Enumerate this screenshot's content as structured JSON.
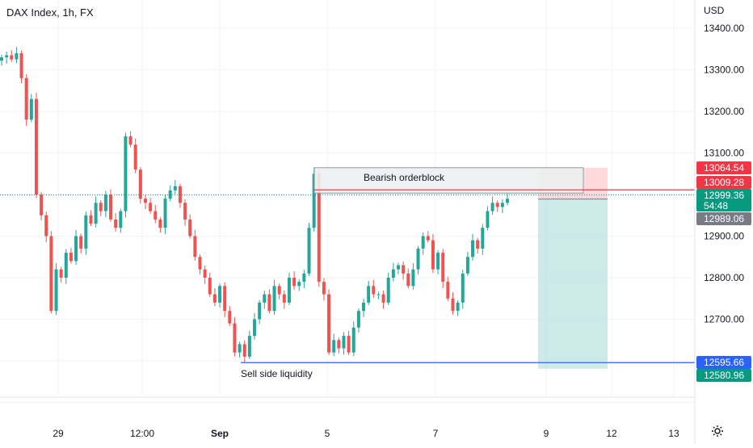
{
  "header": {
    "title": "DAX Index, 1h, FX"
  },
  "price_axis": {
    "currency": "USD",
    "ticks": [
      "13400.00",
      "13300.00",
      "13200.00",
      "13100.00",
      "12900.00",
      "12800.00",
      "12700.00"
    ]
  },
  "time_axis": {
    "ticks": [
      "29",
      "12:00",
      "Sep",
      "5",
      "7",
      "9",
      "12",
      "13"
    ]
  },
  "badges": {
    "rr_top": "13064.54",
    "block_line": "13009.28",
    "current_price": "12999.36",
    "countdown": "54:48",
    "entry": "12989.06",
    "liquidity": "12595.66",
    "rr_bottom": "12580.96"
  },
  "annotations": {
    "orderblock_label": "Bearish orderblock",
    "liquidity_label": "Sell side liquidity"
  },
  "colors": {
    "up": "#26a69a",
    "down": "#ef5350",
    "liquidity_line": "#2962ff",
    "block_line": "#f23645",
    "profit_zone": "#b2dfdb",
    "loss_zone": "#ffcdd2",
    "orderblock_fill": "#eceff1",
    "grid": "#f0f3fa",
    "current_price_line": "#089981"
  },
  "icons": {
    "settings": "gear-icon"
  },
  "chart_data": {
    "type": "candlestick",
    "title": "DAX Index, 1h, FX",
    "currency": "USD",
    "ylim": [
      12490,
      13430
    ],
    "x_tick_labels": [
      "29",
      "12:00",
      "Sep",
      "5",
      "7",
      "9",
      "12",
      "13"
    ],
    "y_tick_labels": [
      "13400.00",
      "13300.00",
      "13200.00",
      "13100.00",
      "12900.00",
      "12800.00",
      "12700.00"
    ],
    "grid": true,
    "close_path": [
      13330,
      13335,
      13325,
      13340,
      13280,
      13180,
      13230,
      13000,
      12950,
      12900,
      12720,
      12820,
      12800,
      12860,
      12840,
      12900,
      12870,
      12950,
      12930,
      12980,
      12960,
      13000,
      12940,
      12920,
      12960,
      13140,
      13120,
      13060,
      12990,
      12980,
      12960,
      12940,
      12920,
      12990,
      13010,
      13020,
      12980,
      12940,
      12900,
      12850,
      12820,
      12800,
      12760,
      12740,
      12780,
      12720,
      12690,
      12620,
      12640,
      12610,
      12660,
      12700,
      12740,
      12760,
      12720,
      12780,
      12760,
      12740,
      12800,
      12780,
      12790,
      12810,
      12920,
      13050,
      12790,
      12760,
      12620,
      12650,
      12630,
      12660,
      12620,
      12680,
      12720,
      12740,
      12780,
      12760,
      12760,
      12740,
      12800,
      12820,
      12830,
      12810,
      12780,
      12820,
      12870,
      12900,
      12890,
      12820,
      12860,
      12790,
      12750,
      12720,
      12740,
      12810,
      12850,
      12890,
      12870,
      12920,
      12960,
      12980,
      12970,
      12980,
      12990
    ],
    "ohlc_samples": [
      {
        "o": 13330,
        "h": 13350,
        "l": 13310,
        "c": 13340
      },
      {
        "o": 13050,
        "h": 13060,
        "l": 12720,
        "c": 12760
      },
      {
        "o": 12990,
        "h": 13150,
        "l": 12980,
        "c": 13140
      },
      {
        "o": 12620,
        "h": 12630,
        "l": 12590,
        "c": 12610
      },
      {
        "o": 12780,
        "h": 13060,
        "l": 12770,
        "c": 13050
      },
      {
        "o": 13050,
        "h": 13060,
        "l": 12780,
        "c": 12790
      },
      {
        "o": 12980,
        "h": 13030,
        "l": 12970,
        "c": 12990
      }
    ],
    "levels": [
      {
        "name": "Bearish orderblock",
        "top": 13064.54,
        "bottom": 13009.28
      },
      {
        "name": "Sell side liquidity",
        "value": 12595.66
      }
    ],
    "position": {
      "entry": 12989.06,
      "stop": 13064.54,
      "target": 12580.96
    },
    "current_price": 12999.36
  }
}
